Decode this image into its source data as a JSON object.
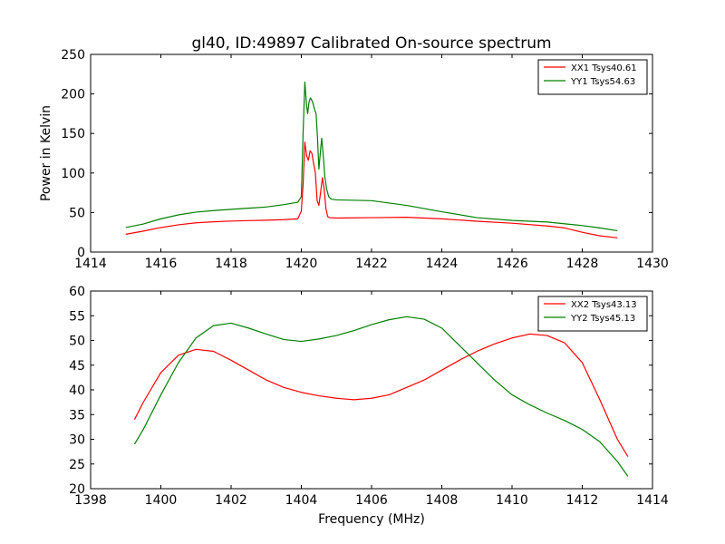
{
  "title": "gl40, ID:49897 Calibrated On-source spectrum",
  "xlabel": "Frequency (MHz)",
  "chart_data": [
    {
      "type": "line",
      "title": "gl40, ID:49897 Calibrated On-source spectrum",
      "xlabel": "",
      "ylabel": "Power in Kelvin",
      "xlim": [
        1414,
        1430
      ],
      "ylim": [
        0,
        250
      ],
      "xticks": [
        1414,
        1416,
        1418,
        1420,
        1422,
        1424,
        1426,
        1428,
        1430
      ],
      "yticks": [
        0,
        50,
        100,
        150,
        200,
        250
      ],
      "grid": false,
      "legend_position": "top-right",
      "series": [
        {
          "name": "XX1 Tsys40.61",
          "color": "#ff0000",
          "points": [
            [
              1415.0,
              22.5
            ],
            [
              1415.5,
              26.5
            ],
            [
              1416.0,
              31
            ],
            [
              1416.5,
              34.5
            ],
            [
              1417.0,
              37
            ],
            [
              1417.5,
              38.3
            ],
            [
              1418.0,
              39.2
            ],
            [
              1418.5,
              39.8
            ],
            [
              1419.0,
              40.3
            ],
            [
              1419.5,
              41
            ],
            [
              1419.9,
              42
            ],
            [
              1420.0,
              52
            ],
            [
              1420.05,
              85
            ],
            [
              1420.1,
              139
            ],
            [
              1420.15,
              122
            ],
            [
              1420.2,
              116
            ],
            [
              1420.25,
              128
            ],
            [
              1420.3,
              125
            ],
            [
              1420.35,
              112
            ],
            [
              1420.4,
              100
            ],
            [
              1420.45,
              65
            ],
            [
              1420.5,
              59
            ],
            [
              1420.55,
              76
            ],
            [
              1420.6,
              94
            ],
            [
              1420.65,
              80
            ],
            [
              1420.7,
              55
            ],
            [
              1420.75,
              45
            ],
            [
              1420.8,
              43.5
            ],
            [
              1421.0,
              43
            ],
            [
              1422.0,
              43.5
            ],
            [
              1423.0,
              44
            ],
            [
              1424.0,
              42
            ],
            [
              1425.0,
              39
            ],
            [
              1426.0,
              36.5
            ],
            [
              1427.0,
              33
            ],
            [
              1427.5,
              30.5
            ],
            [
              1428.0,
              25
            ],
            [
              1428.5,
              20.5
            ],
            [
              1429.0,
              18
            ]
          ]
        },
        {
          "name": "YY1 Tsys54.63",
          "color": "#008000",
          "points": [
            [
              1415.0,
              31
            ],
            [
              1415.5,
              35.5
            ],
            [
              1416.0,
              42
            ],
            [
              1416.5,
              47
            ],
            [
              1417.0,
              50.5
            ],
            [
              1417.5,
              52.5
            ],
            [
              1418.0,
              54
            ],
            [
              1418.5,
              55.5
            ],
            [
              1419.0,
              57
            ],
            [
              1419.5,
              60
            ],
            [
              1419.9,
              63
            ],
            [
              1420.0,
              70
            ],
            [
              1420.05,
              150
            ],
            [
              1420.1,
              215
            ],
            [
              1420.15,
              185
            ],
            [
              1420.18,
              175
            ],
            [
              1420.22,
              190
            ],
            [
              1420.26,
              195
            ],
            [
              1420.32,
              190
            ],
            [
              1420.38,
              180
            ],
            [
              1420.42,
              175
            ],
            [
              1420.46,
              145
            ],
            [
              1420.5,
              105
            ],
            [
              1420.55,
              130
            ],
            [
              1420.58,
              144
            ],
            [
              1420.62,
              125
            ],
            [
              1420.67,
              95
            ],
            [
              1420.72,
              80
            ],
            [
              1420.78,
              70
            ],
            [
              1420.85,
              67
            ],
            [
              1421.0,
              66
            ],
            [
              1422.0,
              65
            ],
            [
              1423.0,
              59
            ],
            [
              1424.0,
              51
            ],
            [
              1425.0,
              43.5
            ],
            [
              1426.0,
              40
            ],
            [
              1427.0,
              38
            ],
            [
              1428.0,
              33.5
            ],
            [
              1428.5,
              30.5
            ],
            [
              1429.0,
              27
            ]
          ]
        }
      ]
    },
    {
      "type": "line",
      "title": "",
      "xlabel": "Frequency (MHz)",
      "ylabel": "",
      "xlim": [
        1398,
        1414
      ],
      "ylim": [
        20,
        60
      ],
      "xticks": [
        1398,
        1400,
        1402,
        1404,
        1406,
        1408,
        1410,
        1412,
        1414
      ],
      "yticks": [
        20,
        25,
        30,
        35,
        40,
        45,
        50,
        55,
        60
      ],
      "grid": false,
      "legend_position": "top-right",
      "series": [
        {
          "name": "XX2 Tsys43.13",
          "color": "#ff0000",
          "points": [
            [
              1399.25,
              34
            ],
            [
              1399.5,
              37.5
            ],
            [
              1400.0,
              43.5
            ],
            [
              1400.5,
              47
            ],
            [
              1401.0,
              48.2
            ],
            [
              1401.5,
              47.8
            ],
            [
              1402.0,
              46
            ],
            [
              1402.5,
              44
            ],
            [
              1403.0,
              42
            ],
            [
              1403.5,
              40.5
            ],
            [
              1404.0,
              39.5
            ],
            [
              1404.5,
              38.8
            ],
            [
              1405.0,
              38.3
            ],
            [
              1405.5,
              38
            ],
            [
              1406.0,
              38.3
            ],
            [
              1406.5,
              39
            ],
            [
              1407.0,
              40.5
            ],
            [
              1407.5,
              42
            ],
            [
              1408.0,
              44
            ],
            [
              1408.5,
              46
            ],
            [
              1409.0,
              47.8
            ],
            [
              1409.5,
              49.3
            ],
            [
              1410.0,
              50.5
            ],
            [
              1410.5,
              51.3
            ],
            [
              1411.0,
              51
            ],
            [
              1411.5,
              49.5
            ],
            [
              1412.0,
              45.5
            ],
            [
              1412.5,
              38
            ],
            [
              1413.0,
              30
            ],
            [
              1413.3,
              26.5
            ]
          ]
        },
        {
          "name": "YY2 Tsys45.13",
          "color": "#008000",
          "points": [
            [
              1399.25,
              29
            ],
            [
              1399.5,
              32
            ],
            [
              1400.0,
              39
            ],
            [
              1400.5,
              45.5
            ],
            [
              1401.0,
              50.5
            ],
            [
              1401.5,
              53
            ],
            [
              1402.0,
              53.5
            ],
            [
              1402.5,
              52.5
            ],
            [
              1403.0,
              51.3
            ],
            [
              1403.5,
              50.2
            ],
            [
              1404.0,
              49.8
            ],
            [
              1404.5,
              50.3
            ],
            [
              1405.0,
              51
            ],
            [
              1405.5,
              52
            ],
            [
              1406.0,
              53.2
            ],
            [
              1406.5,
              54.2
            ],
            [
              1407.0,
              54.8
            ],
            [
              1407.5,
              54.3
            ],
            [
              1408.0,
              52.5
            ],
            [
              1408.5,
              49
            ],
            [
              1409.0,
              45.5
            ],
            [
              1409.5,
              42
            ],
            [
              1410.0,
              39
            ],
            [
              1410.5,
              37
            ],
            [
              1411.0,
              35.3
            ],
            [
              1411.5,
              33.8
            ],
            [
              1412.0,
              32
            ],
            [
              1412.5,
              29.5
            ],
            [
              1413.0,
              25.5
            ],
            [
              1413.3,
              22.5
            ]
          ]
        }
      ]
    }
  ]
}
